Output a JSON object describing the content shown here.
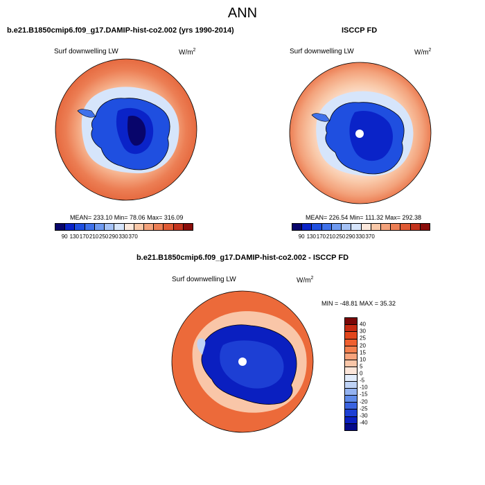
{
  "page": {
    "main_title": "ANN"
  },
  "panels": [
    {
      "id": "model",
      "title": "b.e21.B1850cmip6.f09_g17.DAMIP-hist-co2.002 (yrs 1990-2014)",
      "variable_label": "Surf downwelling LW",
      "units_base": "W/m",
      "units_exp": "2",
      "stats_text": "MEAN= 233.10  Min=  78.06  Max= 316.09",
      "colorbar_ticks": [
        "90",
        "130",
        "170",
        "210",
        "250",
        "290",
        "330",
        "370"
      ]
    },
    {
      "id": "obs",
      "title": "ISCCP FD",
      "variable_label": "Surf downwelling LW",
      "units_base": "W/m",
      "units_exp": "2",
      "stats_text": "MEAN= 226.54  Min= 111.32  Max= 292.38",
      "colorbar_ticks": [
        "90",
        "130",
        "170",
        "210",
        "250",
        "290",
        "330",
        "370"
      ]
    },
    {
      "id": "diff",
      "title": "b.e21.B1850cmip6.f09_g17.DAMIP-hist-co2.002 - ISCCP FD",
      "variable_label": "Surf downwelling LW",
      "units_base": "W/m",
      "units_exp": "2",
      "stats_text": "MIN = -48.81 MAX =  35.32",
      "colorbar_ticks": [
        "40",
        "30",
        "25",
        "20",
        "15",
        "10",
        "5",
        "0",
        "-5",
        "-10",
        "-15",
        "-20",
        "-25",
        "-30",
        "-40"
      ]
    }
  ],
  "colors": {
    "abs_scale": [
      "#08056b",
      "#0a23c8",
      "#1f4fe0",
      "#3f71ea",
      "#6f9af0",
      "#a5c2f6",
      "#d6e5fb",
      "#fbe8dc",
      "#f9c8a8",
      "#f3a27b",
      "#ec7e54",
      "#e05a34",
      "#c4341d",
      "#8a0d0a"
    ],
    "diff_scale": [
      "#7a0707",
      "#c62a12",
      "#e2461c",
      "#ef6030",
      "#f3804f",
      "#f6a37c",
      "#f9c6a8",
      "#fce6da",
      "#e2ecfb",
      "#bfd3f6",
      "#93b2f1",
      "#5f8ae9",
      "#3a63e0",
      "#1d3fd4",
      "#0a1fc0",
      "#040a8a"
    ],
    "land_outline": "#000000"
  }
}
